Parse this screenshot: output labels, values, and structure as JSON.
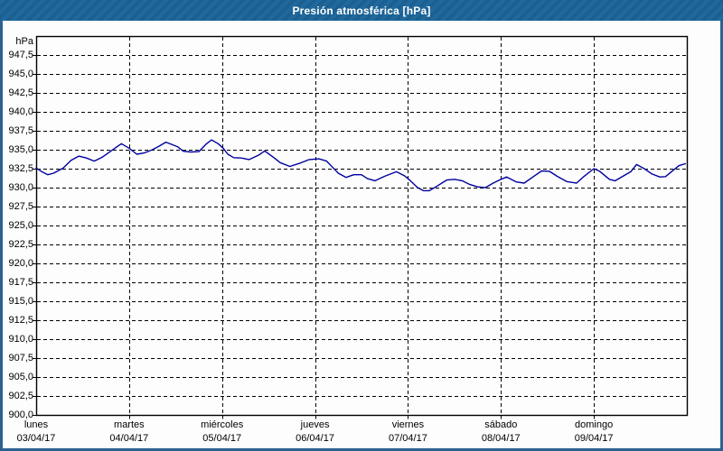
{
  "window": {
    "title": "Presión atmosférica [hPa]"
  },
  "colors": {
    "titlebar": "#1f689b",
    "window_border": "#2a6191",
    "background": "#fcfdfc",
    "plot_frame": "#000000",
    "gridline": "#000000",
    "line": "#0000a0",
    "title_text": "#ffffff",
    "label_text": "#000000"
  },
  "chart_data": {
    "type": "line",
    "title": "Presión atmosférica [hPa]",
    "unit_label": "hPa",
    "ylabel": "hPa",
    "xlabel": "",
    "ylim": [
      900,
      950
    ],
    "ytick_step": 2.5,
    "grid": "dashed",
    "legend": "none",
    "x_range_hours": [
      0,
      168
    ],
    "y_ticks": [
      {
        "value": 947.5,
        "label": "947,5"
      },
      {
        "value": 945.0,
        "label": "945,0"
      },
      {
        "value": 942.5,
        "label": "942,5"
      },
      {
        "value": 940.0,
        "label": "940,0"
      },
      {
        "value": 937.5,
        "label": "937,5"
      },
      {
        "value": 935.0,
        "label": "935,0"
      },
      {
        "value": 932.5,
        "label": "932,5"
      },
      {
        "value": 930.0,
        "label": "930,0"
      },
      {
        "value": 927.5,
        "label": "927,5"
      },
      {
        "value": 925.0,
        "label": "925,0"
      },
      {
        "value": 922.5,
        "label": "922,5"
      },
      {
        "value": 920.0,
        "label": "920,0"
      },
      {
        "value": 917.5,
        "label": "917,5"
      },
      {
        "value": 915.0,
        "label": "915,0"
      },
      {
        "value": 912.5,
        "label": "912,5"
      },
      {
        "value": 910.0,
        "label": "910,0"
      },
      {
        "value": 907.5,
        "label": "907,5"
      },
      {
        "value": 905.0,
        "label": "905,0"
      },
      {
        "value": 902.5,
        "label": "902,5"
      },
      {
        "value": 900.0,
        "label": "900,0"
      }
    ],
    "days": [
      {
        "name": "lunes",
        "date": "03/04/17"
      },
      {
        "name": "martes",
        "date": "04/04/17"
      },
      {
        "name": "miércoles",
        "date": "05/04/17"
      },
      {
        "name": "jueves",
        "date": "06/04/17"
      },
      {
        "name": "viernes",
        "date": "07/04/17"
      },
      {
        "name": "sábado",
        "date": "08/04/17"
      },
      {
        "name": "domingo",
        "date": "09/04/17"
      }
    ],
    "series": [
      {
        "name": "Presión atmosférica",
        "color": "#0000a0",
        "points": [
          [
            0,
            932.6
          ],
          [
            1.5,
            932.1
          ],
          [
            3,
            931.7
          ],
          [
            4.5,
            931.9
          ],
          [
            7,
            932.6
          ],
          [
            9,
            933.6
          ],
          [
            11,
            934.15
          ],
          [
            13,
            933.9
          ],
          [
            15,
            933.5
          ],
          [
            17,
            934.0
          ],
          [
            19.5,
            934.9
          ],
          [
            22,
            935.8
          ],
          [
            24,
            935.2
          ],
          [
            26,
            934.4
          ],
          [
            28,
            934.6
          ],
          [
            30,
            935.0
          ],
          [
            31.5,
            935.4
          ],
          [
            33.5,
            936.0
          ],
          [
            36.5,
            935.4
          ],
          [
            38,
            934.8
          ],
          [
            40,
            934.7
          ],
          [
            42,
            934.75
          ],
          [
            44,
            935.8
          ],
          [
            45.3,
            936.3
          ],
          [
            47,
            935.8
          ],
          [
            48.3,
            935.2
          ],
          [
            49.5,
            934.4
          ],
          [
            51,
            933.95
          ],
          [
            53,
            933.9
          ],
          [
            55,
            933.7
          ],
          [
            57.5,
            934.3
          ],
          [
            59,
            934.85
          ],
          [
            61.5,
            933.9
          ],
          [
            63,
            933.3
          ],
          [
            65.5,
            932.8
          ],
          [
            68,
            933.2
          ],
          [
            70.5,
            933.7
          ],
          [
            73,
            933.8
          ],
          [
            75,
            933.5
          ],
          [
            76.5,
            932.7
          ],
          [
            78,
            931.9
          ],
          [
            80,
            931.35
          ],
          [
            82,
            931.7
          ],
          [
            84,
            931.7
          ],
          [
            85.5,
            931.2
          ],
          [
            87.5,
            930.9
          ],
          [
            90,
            931.5
          ],
          [
            93,
            932.1
          ],
          [
            95,
            931.6
          ],
          [
            96,
            931.2
          ],
          [
            98.5,
            930.0
          ],
          [
            100,
            929.6
          ],
          [
            101.5,
            929.6
          ],
          [
            103.5,
            930.2
          ],
          [
            106,
            931.0
          ],
          [
            108,
            931.1
          ],
          [
            110,
            930.9
          ],
          [
            112,
            930.4
          ],
          [
            114,
            930.1
          ],
          [
            116,
            930.0
          ],
          [
            118,
            930.6
          ],
          [
            120,
            931.1
          ],
          [
            121.5,
            931.4
          ],
          [
            124,
            930.75
          ],
          [
            126,
            930.6
          ],
          [
            128.5,
            931.5
          ],
          [
            130.5,
            932.2
          ],
          [
            132.5,
            932.15
          ],
          [
            134.5,
            931.5
          ],
          [
            137,
            930.8
          ],
          [
            139.5,
            930.6
          ],
          [
            141.5,
            931.5
          ],
          [
            144,
            932.5
          ],
          [
            145.5,
            932.15
          ],
          [
            148,
            931.1
          ],
          [
            149.5,
            930.9
          ],
          [
            151.5,
            931.5
          ],
          [
            153.5,
            932.1
          ],
          [
            155,
            933.05
          ],
          [
            157,
            932.5
          ],
          [
            159,
            931.8
          ],
          [
            161,
            931.4
          ],
          [
            162.5,
            931.45
          ],
          [
            164.5,
            932.3
          ],
          [
            166,
            932.9
          ],
          [
            167.6,
            933.15
          ]
        ]
      }
    ]
  }
}
